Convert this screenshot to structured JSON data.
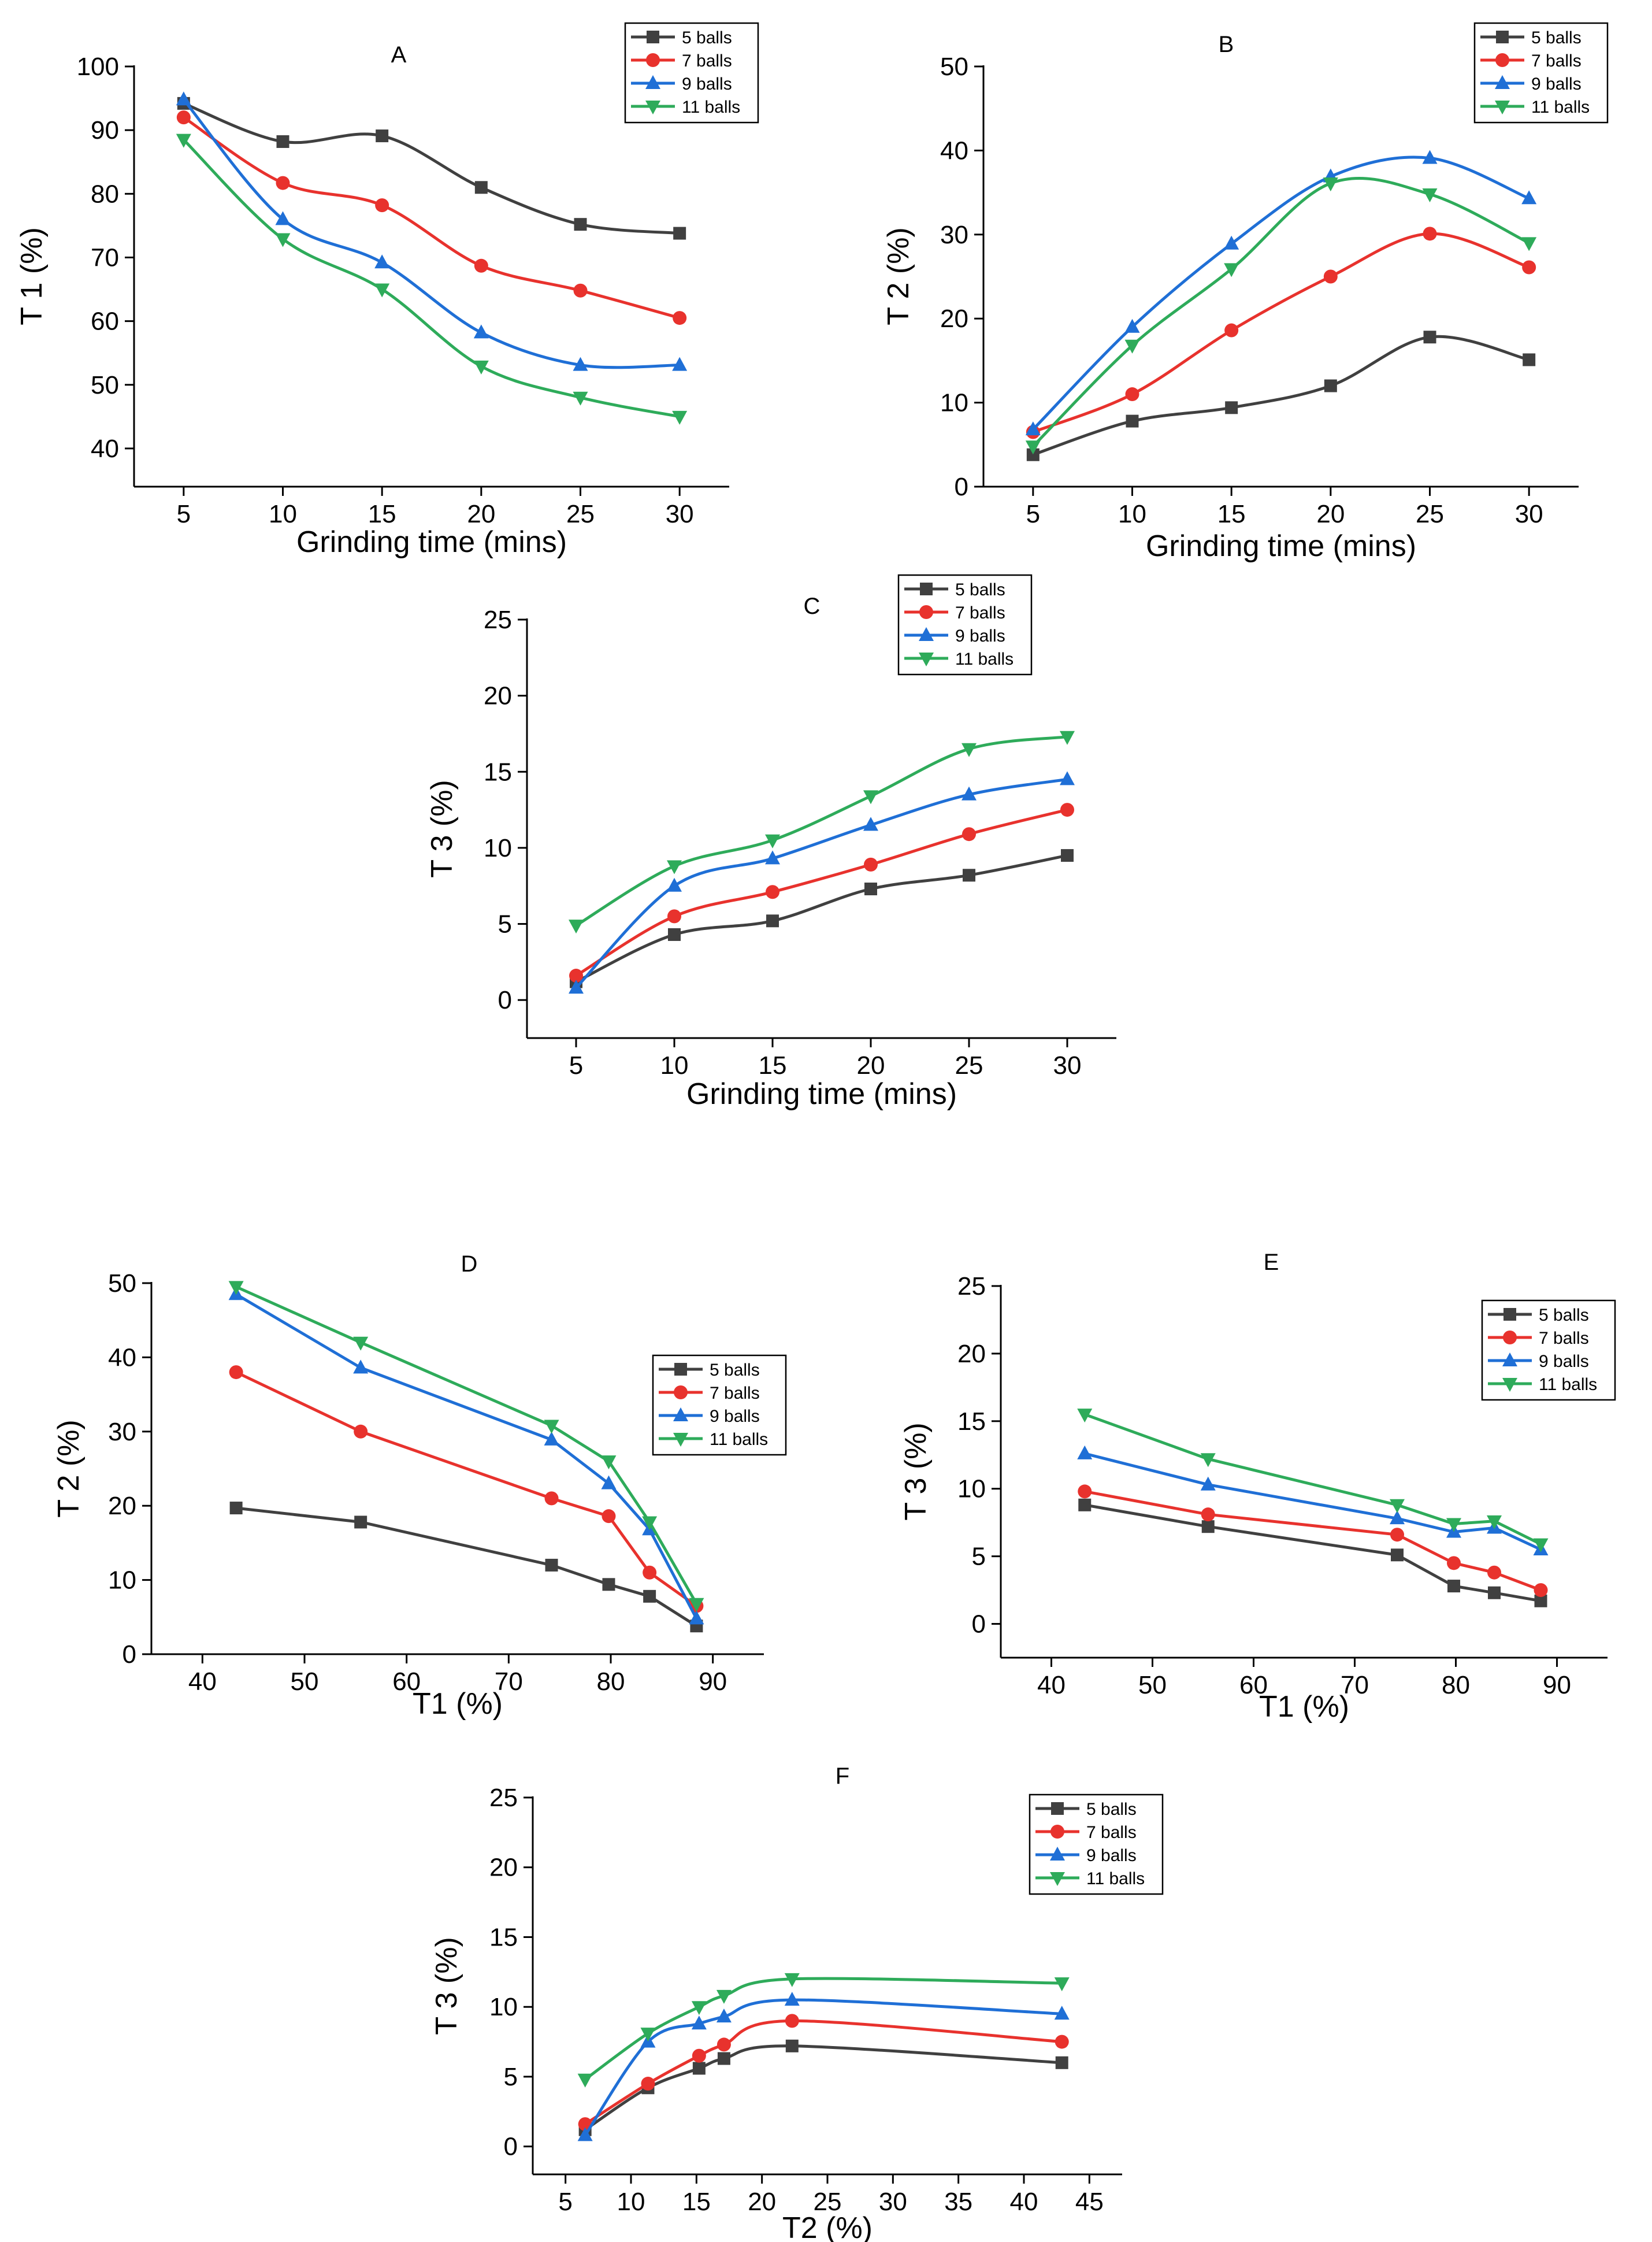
{
  "series_styles": {
    "5 balls": {
      "color": "#404040",
      "marker": "square"
    },
    "7 balls": {
      "color": "#e8322d",
      "marker": "circle"
    },
    "9 balls": {
      "color": "#1f6fd6",
      "marker": "triangle-up"
    },
    "11 balls": {
      "color": "#2eab5a",
      "marker": "triangle-down"
    }
  },
  "chart_data": [
    {
      "id": "A",
      "type": "line",
      "title": "A",
      "xlabel": "Grinding time (mins)",
      "ylabel": "T 1 (%)",
      "xlim": [
        2.5,
        32.5
      ],
      "ylim": [
        34,
        100
      ],
      "xticks": [
        5,
        10,
        15,
        20,
        25,
        30
      ],
      "yticks": [
        40,
        50,
        60,
        70,
        80,
        90,
        100
      ],
      "x": [
        5,
        10,
        15,
        20,
        25,
        30
      ],
      "series": [
        {
          "name": "5 balls",
          "values": [
            94.2,
            88.2,
            89.1,
            81.0,
            75.2,
            73.8
          ]
        },
        {
          "name": "7 balls",
          "values": [
            92.0,
            81.7,
            78.2,
            68.7,
            64.8,
            60.5
          ]
        },
        {
          "name": "9 balls",
          "values": [
            94.8,
            76.0,
            69.2,
            58.2,
            53.1,
            53.1
          ]
        },
        {
          "name": "11 balls",
          "values": [
            88.5,
            72.9,
            65.0,
            52.9,
            48.0,
            45.0
          ]
        }
      ]
    },
    {
      "id": "B",
      "type": "line",
      "title": "B",
      "xlabel": "Grinding time (mins)",
      "ylabel": "T 2 (%)",
      "xlim": [
        2.5,
        32.5
      ],
      "ylim": [
        0,
        50
      ],
      "xticks": [
        5,
        10,
        15,
        20,
        25,
        30
      ],
      "yticks": [
        0,
        10,
        20,
        30,
        40,
        50
      ],
      "x": [
        5,
        10,
        15,
        20,
        25,
        30
      ],
      "series": [
        {
          "name": "5 balls",
          "values": [
            3.8,
            7.8,
            9.4,
            12.0,
            17.8,
            15.1
          ]
        },
        {
          "name": "7 balls",
          "values": [
            6.5,
            11.0,
            18.6,
            25.0,
            30.1,
            26.1
          ]
        },
        {
          "name": "9 balls",
          "values": [
            6.8,
            19.0,
            28.9,
            36.9,
            39.1,
            34.3
          ]
        },
        {
          "name": "11 balls",
          "values": [
            4.8,
            16.8,
            25.9,
            36.1,
            34.8,
            29.0
          ]
        }
      ]
    },
    {
      "id": "C",
      "type": "line",
      "title": "C",
      "xlabel": "Grinding time (mins)",
      "ylabel": "T 3 (%)",
      "xlim": [
        2.5,
        32.5
      ],
      "ylim": [
        -2.5,
        25
      ],
      "xticks": [
        5,
        10,
        15,
        20,
        25,
        30
      ],
      "yticks": [
        0,
        5,
        10,
        15,
        20,
        25
      ],
      "x": [
        5,
        10,
        15,
        20,
        25,
        30
      ],
      "series": [
        {
          "name": "5 balls",
          "values": [
            1.2,
            4.3,
            5.2,
            7.3,
            8.2,
            9.5
          ]
        },
        {
          "name": "7 balls",
          "values": [
            1.6,
            5.5,
            7.1,
            8.9,
            10.9,
            12.5
          ]
        },
        {
          "name": "9 balls",
          "values": [
            0.8,
            7.5,
            9.3,
            11.5,
            13.5,
            14.5
          ]
        },
        {
          "name": "11 balls",
          "values": [
            4.9,
            8.8,
            10.5,
            13.4,
            16.5,
            17.3
          ]
        }
      ]
    },
    {
      "id": "D",
      "type": "line",
      "title": "D",
      "xlabel": "T1  (%)",
      "ylabel": "T 2 (%)",
      "xlim": [
        35,
        95
      ],
      "ylim": [
        0,
        50
      ],
      "xticks": [
        40,
        50,
        60,
        70,
        80,
        90
      ],
      "yticks": [
        0,
        10,
        20,
        30,
        40,
        50
      ],
      "series": [
        {
          "name": "5 balls",
          "x": [
            43.3,
            55.5,
            74.2,
            79.8,
            83.8,
            88.4
          ],
          "values": [
            19.7,
            17.8,
            12.0,
            9.4,
            7.8,
            3.8
          ]
        },
        {
          "name": "7 balls",
          "x": [
            43.3,
            55.5,
            74.2,
            79.8,
            83.8,
            88.4
          ],
          "values": [
            38.0,
            30.0,
            21.0,
            18.6,
            11.0,
            6.5
          ]
        },
        {
          "name": "9 balls",
          "x": [
            43.3,
            55.5,
            74.2,
            79.8,
            83.8,
            88.4
          ],
          "values": [
            48.5,
            38.6,
            28.9,
            23.0,
            16.8,
            4.8
          ]
        },
        {
          "name": "11 balls",
          "x": [
            43.3,
            55.5,
            74.2,
            79.8,
            83.8,
            88.4
          ],
          "values": [
            49.5,
            42.0,
            30.8,
            26.0,
            17.8,
            6.8
          ]
        }
      ]
    },
    {
      "id": "E",
      "type": "line",
      "title": "E",
      "xlabel": "T1  (%)",
      "ylabel": "T 3  (%)",
      "xlim": [
        35,
        95
      ],
      "ylim": [
        -2.5,
        25
      ],
      "xticks": [
        40,
        50,
        60,
        70,
        80,
        90
      ],
      "yticks": [
        0,
        5,
        10,
        15,
        20,
        25
      ],
      "series": [
        {
          "name": "5 balls",
          "x": [
            43.3,
            55.5,
            74.2,
            79.8,
            83.8,
            88.4
          ],
          "values": [
            8.8,
            7.2,
            5.1,
            2.8,
            2.3,
            1.7
          ]
        },
        {
          "name": "7 balls",
          "x": [
            43.3,
            55.5,
            74.2,
            79.8,
            83.8,
            88.4
          ],
          "values": [
            9.8,
            8.1,
            6.6,
            4.5,
            3.8,
            2.5
          ]
        },
        {
          "name": "9 balls",
          "x": [
            43.3,
            55.5,
            74.2,
            79.8,
            83.8,
            88.4
          ],
          "values": [
            12.6,
            10.3,
            7.8,
            6.8,
            7.1,
            5.5
          ]
        },
        {
          "name": "11 balls",
          "x": [
            43.3,
            55.5,
            74.2,
            79.8,
            83.8,
            88.4
          ],
          "values": [
            15.5,
            12.2,
            8.8,
            7.4,
            7.6,
            5.9
          ]
        }
      ]
    },
    {
      "id": "F",
      "type": "line",
      "title": "F",
      "xlabel": "T2  (%)",
      "ylabel": "T 3  (%)",
      "xlim": [
        2.5,
        47.5
      ],
      "ylim": [
        -2,
        25
      ],
      "xticks": [
        5,
        10,
        15,
        20,
        25,
        30,
        35,
        40,
        45
      ],
      "yticks": [
        0,
        5,
        10,
        15,
        20,
        25
      ],
      "series": [
        {
          "name": "5 balls",
          "x": [
            6.5,
            11.3,
            15.2,
            17.1,
            22.3,
            42.9
          ],
          "values": [
            1.2,
            4.2,
            5.6,
            6.3,
            7.2,
            6.0
          ]
        },
        {
          "name": "7 balls",
          "x": [
            6.5,
            11.3,
            15.2,
            17.1,
            22.3,
            42.9
          ],
          "values": [
            1.6,
            4.5,
            6.5,
            7.3,
            9.0,
            7.5
          ]
        },
        {
          "name": "9 balls",
          "x": [
            6.5,
            11.3,
            15.2,
            17.1,
            22.3,
            42.9
          ],
          "values": [
            0.8,
            7.5,
            8.8,
            9.3,
            10.5,
            9.5
          ]
        },
        {
          "name": "11 balls",
          "x": [
            6.5,
            11.3,
            15.2,
            17.1,
            22.3,
            42.9
          ],
          "values": [
            4.8,
            8.1,
            10.0,
            10.8,
            12.0,
            11.7
          ]
        }
      ]
    }
  ]
}
